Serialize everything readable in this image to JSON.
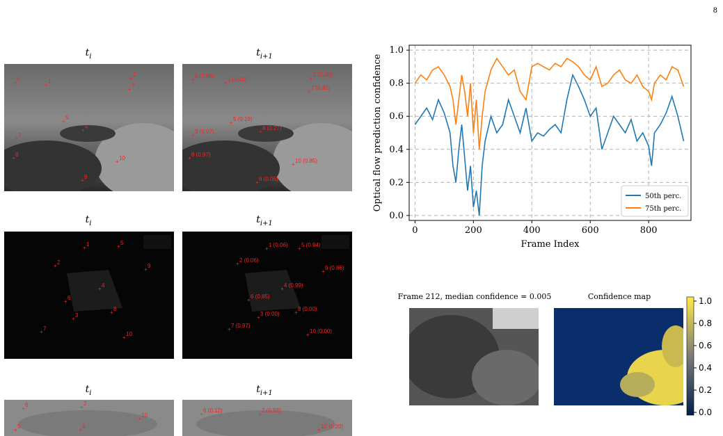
{
  "page_number": "8",
  "rows": [
    {
      "title_left": "t",
      "title_left_sub": "i",
      "title_right": "t",
      "title_right_sub": "i+1",
      "left_points": [
        "1",
        "2",
        "3",
        "4",
        "5",
        "6",
        "7",
        "8",
        "9",
        "10"
      ],
      "right_points": [
        "1 (0.04)",
        "2 (0.08)",
        "3 (0.07)",
        "4 (0.27)",
        "5 (0.19)",
        "6 (0.88)",
        "7 (0.81)",
        "8 (0.97)",
        "9 (0.06)",
        "10 (0.85)"
      ]
    },
    {
      "title_left": "t",
      "title_left_sub": "i",
      "title_right": "t",
      "title_right_sub": "i+1",
      "left_points": [
        "1",
        "2",
        "3",
        "4",
        "5",
        "6",
        "7",
        "8",
        "9",
        "10"
      ],
      "right_points": [
        "1 (0.06)",
        "2 (0.06)",
        "3 (0.00)",
        "4 (0.99)",
        "5 (0.94)",
        "6 (0.85)",
        "7 (0.97)",
        "8 (0.00)",
        "9 (0.86)",
        "10 (0.00)"
      ]
    },
    {
      "title_left": "t",
      "title_left_sub": "i",
      "title_right": "t",
      "title_right_sub": "i+1",
      "left_points": [
        "6",
        "2",
        "10",
        "5",
        "9"
      ],
      "right_points": [
        "6 (0.12)",
        "2 (0.93)",
        "10 (0.20)"
      ]
    }
  ],
  "chart_data": {
    "type": "line",
    "xlabel": "Frame Index",
    "ylabel": "Optical flow prediction confidence",
    "xlim": [
      -20,
      945
    ],
    "ylim": [
      -0.03,
      1.03
    ],
    "xticks": [
      0,
      200,
      400,
      600,
      800
    ],
    "yticks": [
      0.0,
      0.2,
      0.4,
      0.6,
      0.8,
      1.0
    ],
    "grid": true,
    "legend_position": "lower-right",
    "series": [
      {
        "name": "50th perc.",
        "color": "#1f77b4",
        "x": [
          0,
          20,
          40,
          60,
          80,
          100,
          120,
          130,
          140,
          150,
          160,
          170,
          180,
          190,
          200,
          210,
          220,
          230,
          240,
          260,
          280,
          300,
          320,
          340,
          360,
          380,
          400,
          420,
          440,
          460,
          480,
          500,
          520,
          540,
          560,
          580,
          600,
          620,
          640,
          660,
          680,
          700,
          720,
          740,
          760,
          780,
          800,
          810,
          820,
          840,
          860,
          880,
          900,
          920
        ],
        "values": [
          0.55,
          0.6,
          0.65,
          0.58,
          0.7,
          0.62,
          0.5,
          0.3,
          0.2,
          0.4,
          0.55,
          0.35,
          0.15,
          0.3,
          0.05,
          0.15,
          0.0,
          0.3,
          0.45,
          0.6,
          0.5,
          0.55,
          0.7,
          0.6,
          0.5,
          0.65,
          0.45,
          0.5,
          0.48,
          0.52,
          0.55,
          0.5,
          0.7,
          0.85,
          0.78,
          0.7,
          0.6,
          0.65,
          0.4,
          0.5,
          0.6,
          0.55,
          0.5,
          0.58,
          0.45,
          0.5,
          0.42,
          0.3,
          0.5,
          0.55,
          0.62,
          0.72,
          0.6,
          0.45
        ]
      },
      {
        "name": "75th perc.",
        "color": "#ff7f0e",
        "x": [
          0,
          20,
          40,
          60,
          80,
          100,
          120,
          130,
          140,
          150,
          160,
          170,
          180,
          190,
          200,
          210,
          220,
          230,
          240,
          260,
          280,
          300,
          320,
          340,
          360,
          380,
          400,
          420,
          440,
          460,
          480,
          500,
          520,
          540,
          560,
          580,
          600,
          620,
          640,
          660,
          680,
          700,
          720,
          740,
          760,
          780,
          800,
          810,
          820,
          840,
          860,
          880,
          900,
          920
        ],
        "values": [
          0.8,
          0.85,
          0.82,
          0.88,
          0.9,
          0.85,
          0.78,
          0.7,
          0.55,
          0.7,
          0.85,
          0.75,
          0.6,
          0.8,
          0.5,
          0.7,
          0.4,
          0.6,
          0.75,
          0.88,
          0.95,
          0.9,
          0.85,
          0.88,
          0.75,
          0.7,
          0.9,
          0.92,
          0.9,
          0.88,
          0.92,
          0.9,
          0.95,
          0.93,
          0.9,
          0.85,
          0.82,
          0.9,
          0.78,
          0.8,
          0.85,
          0.88,
          0.82,
          0.8,
          0.85,
          0.78,
          0.75,
          0.7,
          0.8,
          0.85,
          0.82,
          0.9,
          0.88,
          0.78
        ]
      }
    ]
  },
  "bottom_right": {
    "frame_caption": "Frame 212, median confidence = 0.005",
    "map_caption": "Confidence map",
    "colorbar_ticks": [
      "0.0",
      "0.2",
      "0.4",
      "0.6",
      "0.8",
      "1.0"
    ]
  }
}
